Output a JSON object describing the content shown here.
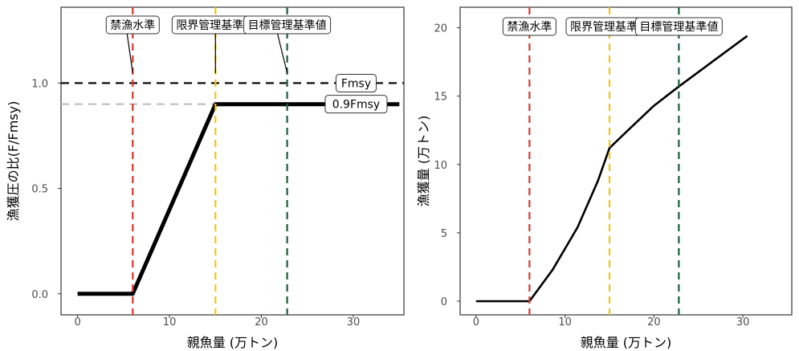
{
  "chart_data": [
    {
      "type": "line",
      "title": "",
      "xlabel": "親魚量 (万トン)",
      "ylabel": "漁獲圧の比(F/Fmsy)",
      "xlim": [
        -1.8,
        35.5
      ],
      "ylim": [
        -0.1,
        1.36
      ],
      "xticks": [
        0,
        10,
        20,
        30
      ],
      "yticks": [
        0.0,
        0.5,
        1.0
      ],
      "ytick_labels": [
        "0.0",
        "0.5",
        "1.0"
      ],
      "grid": false,
      "frame": "box",
      "series": [
        {
          "x": [
            0,
            6.0,
            15.0,
            35
          ],
          "y": [
            0,
            0,
            0.9,
            0.9
          ]
        }
      ],
      "hlines": [
        {
          "y": 1.0,
          "color": "#000000",
          "label": "Fmsy",
          "label_x": 30.3
        },
        {
          "y": 0.9,
          "color": "#bfbfbf",
          "label": "0.9Fmsy",
          "label_x": 30.3
        }
      ],
      "vlines": [
        {
          "x": 6.0,
          "color": "#d9372e",
          "label": "禁漁水準"
        },
        {
          "x": 15.0,
          "color": "#f2c417",
          "label": "限界管理基準値"
        },
        {
          "x": 22.8,
          "color": "#1d5e3c",
          "label": "目標管理基準値"
        }
      ]
    },
    {
      "type": "line",
      "title": "",
      "xlabel": "親魚量 (万トン)",
      "ylabel": "漁獲量 (万トン)",
      "xlim": [
        -1.8,
        35.5
      ],
      "ylim": [
        -1.0,
        21.5
      ],
      "xticks": [
        0,
        10,
        20,
        30
      ],
      "yticks": [
        0,
        5,
        10,
        15,
        20
      ],
      "ytick_labels": [
        "0",
        "5",
        "10",
        "15",
        "20"
      ],
      "grid": false,
      "frame": "box",
      "series": [
        {
          "x": [
            0,
            6.0,
            8.6,
            11.4,
            13.7,
            15.0,
            17.4,
            20.0,
            22.8,
            25.7,
            30.5
          ],
          "y": [
            0,
            0,
            2.3,
            5.4,
            8.8,
            11.2,
            12.7,
            14.3,
            15.7,
            17.1,
            19.4
          ]
        }
      ],
      "vlines": [
        {
          "x": 6.0,
          "color": "#d9372e",
          "label": "禁漁水準"
        },
        {
          "x": 15.0,
          "color": "#f2c417",
          "label": "限界管理基準値"
        },
        {
          "x": 22.8,
          "color": "#1d5e3c",
          "label": "目標管理基準値"
        }
      ]
    }
  ]
}
